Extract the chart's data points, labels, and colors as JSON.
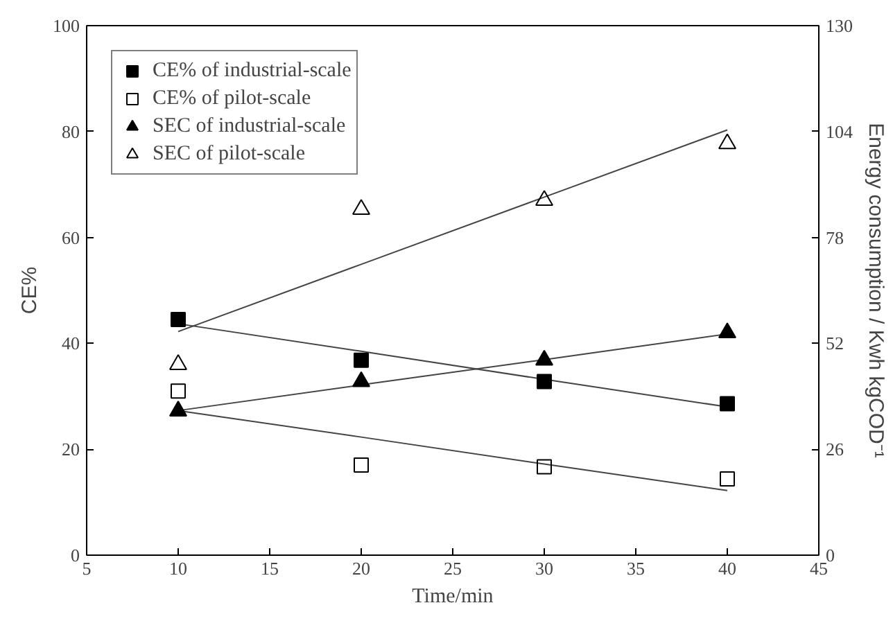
{
  "chart_data": {
    "type": "scatter",
    "xlabel": "Time/min",
    "ylabel": "CE%",
    "y2label": "Energy consumption / Kwh kgCOD⁻¹",
    "x": [
      10,
      20,
      30,
      40
    ],
    "xlim": [
      5,
      45
    ],
    "xticks": [
      5,
      10,
      15,
      20,
      25,
      30,
      35,
      40,
      45
    ],
    "ylim": [
      0,
      100
    ],
    "yticks": [
      0,
      20,
      40,
      60,
      80,
      100
    ],
    "y2lim": [
      0,
      130
    ],
    "y2ticks": [
      0,
      26,
      52,
      78,
      104,
      130
    ],
    "grid": false,
    "legend": "top left",
    "series": [
      {
        "name": "CE% of industrial-scale",
        "color": "#000000",
        "marker": "square",
        "values": [
          44.5,
          36.8,
          32.8,
          28.6
        ]
      },
      {
        "name": "CE% of pilot-scale",
        "color": "#000000",
        "marker": "square_open",
        "values": [
          31.0,
          17.0,
          16.7,
          14.4
        ]
      },
      {
        "name": "SEC of industrial-scale",
        "color": "#000000",
        "marker": "triangle",
        "axis": "y2",
        "values": [
          35.4,
          42.6,
          47.9,
          54.6
        ]
      },
      {
        "name": "SEC of pilot-scale",
        "color": "#000000",
        "marker": "triangle_open",
        "axis": "y2",
        "values": [
          46.8,
          84.9,
          87.1,
          101.0
        ]
      },
      {
        "type": "line",
        "color": "#444444",
        "values": [
          43.7,
          38.5,
          33.2,
          28.0
        ]
      },
      {
        "type": "line",
        "color": "#444444",
        "values": [
          27.3,
          22.3,
          17.2,
          12.2
        ]
      },
      {
        "type": "line",
        "color": "#444444",
        "axis": "y2",
        "values": [
          35.5,
          41.8,
          48.0,
          54.3
        ]
      },
      {
        "type": "line",
        "color": "#444444",
        "axis": "y2",
        "values": [
          54.9,
          71.4,
          87.9,
          104.4
        ]
      }
    ]
  }
}
